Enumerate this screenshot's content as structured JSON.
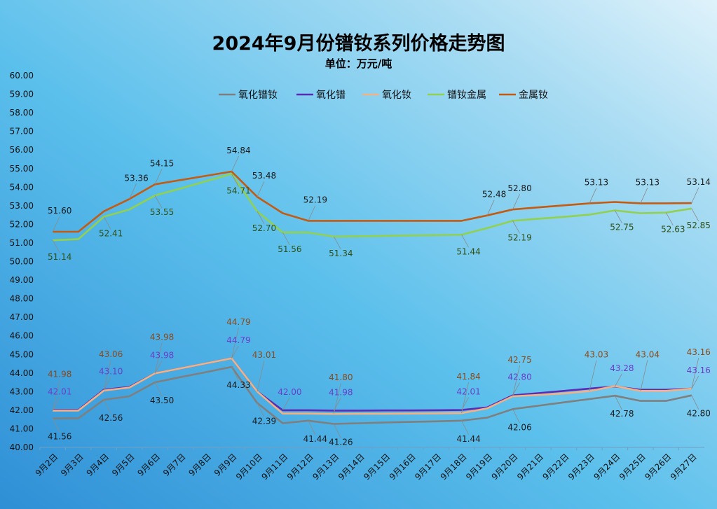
{
  "chart_data": {
    "type": "line",
    "title": "2024年9月份镨钕系列价格走势图",
    "subtitle": "单位：万元/吨",
    "ylim": [
      40,
      60
    ],
    "yticks": [
      "40.00",
      "41.00",
      "42.00",
      "43.00",
      "44.00",
      "45.00",
      "46.00",
      "47.00",
      "48.00",
      "49.00",
      "50.00",
      "51.00",
      "52.00",
      "53.00",
      "54.00",
      "55.00",
      "56.00",
      "57.00",
      "58.00",
      "59.00",
      "60.00"
    ],
    "categories": [
      "9月2日",
      "9月3日",
      "9月4日",
      "9月5日",
      "9月6日",
      "9月7日",
      "9月8日",
      "9月9日",
      "9月10日",
      "9月11日",
      "9月12日",
      "9月13日",
      "9月14日",
      "9月15日",
      "9月16日",
      "9月17日",
      "9月18日",
      "9月19日",
      "9月20日",
      "9月21日",
      "9月22日",
      "9月23日",
      "9月24日",
      "9月25日",
      "9月26日",
      "9月27日"
    ],
    "legend_position": "top",
    "grid": false,
    "series": [
      {
        "name": "氧化镨钕",
        "color": "#7f7f7f",
        "label_color": "#1a1a1a",
        "values": [
          41.56,
          41.56,
          42.56,
          42.75,
          43.5,
          43.78,
          44.05,
          44.33,
          42.39,
          41.3,
          41.44,
          41.26,
          41.3,
          41.34,
          41.37,
          41.4,
          41.44,
          41.6,
          42.06,
          42.24,
          42.42,
          42.6,
          42.78,
          42.5,
          42.5,
          42.8
        ]
      },
      {
        "name": "氧化镨",
        "color": "#5b2bb5",
        "label_color": "#6a3fc8",
        "values": [
          42.01,
          42.01,
          43.1,
          43.25,
          43.98,
          44.25,
          44.52,
          44.79,
          43.01,
          42.0,
          42.0,
          41.98,
          41.98,
          41.99,
          41.99,
          42.0,
          42.01,
          42.15,
          42.8,
          42.92,
          43.04,
          43.16,
          43.28,
          43.1,
          43.1,
          43.16
        ]
      },
      {
        "name": "氧化钕",
        "color": "#f4b183",
        "label_color": "#8b4a1b",
        "values": [
          41.98,
          41.98,
          43.06,
          43.22,
          43.98,
          44.25,
          44.52,
          44.79,
          43.01,
          41.82,
          41.82,
          41.8,
          41.81,
          41.81,
          41.82,
          41.83,
          41.84,
          42.1,
          42.75,
          42.82,
          42.9,
          43.03,
          43.3,
          43.04,
          43.04,
          43.16
        ]
      },
      {
        "name": "镨钕金属",
        "color": "#92d050",
        "label_color": "#2f4f14",
        "values": [
          51.14,
          51.2,
          52.41,
          52.8,
          53.55,
          53.93,
          54.32,
          54.71,
          52.7,
          51.56,
          51.56,
          51.34,
          51.36,
          51.38,
          51.4,
          51.42,
          51.44,
          51.8,
          52.19,
          52.3,
          52.4,
          52.52,
          52.75,
          52.6,
          52.63,
          52.85
        ]
      },
      {
        "name": "金属钕",
        "color": "#c55a11",
        "label_color": "#1a1a1a",
        "values": [
          51.6,
          51.6,
          52.7,
          53.36,
          54.15,
          54.38,
          54.61,
          54.84,
          53.48,
          52.6,
          52.19,
          52.19,
          52.19,
          52.19,
          52.19,
          52.19,
          52.19,
          52.48,
          52.8,
          52.91,
          53.02,
          53.13,
          53.2,
          53.13,
          53.13,
          53.14
        ]
      }
    ],
    "data_labels": [
      {
        "series": 4,
        "index": 0,
        "text": "51.60"
      },
      {
        "series": 4,
        "index": 3,
        "text": "53.36"
      },
      {
        "series": 4,
        "index": 4,
        "text": "54.15"
      },
      {
        "series": 4,
        "index": 7,
        "text": "54.84"
      },
      {
        "series": 4,
        "index": 8,
        "text": "53.48"
      },
      {
        "series": 4,
        "index": 10,
        "text": "52.19"
      },
      {
        "series": 4,
        "index": 17,
        "text": "52.48"
      },
      {
        "series": 4,
        "index": 18,
        "text": "52.80"
      },
      {
        "series": 4,
        "index": 21,
        "text": "53.13"
      },
      {
        "series": 4,
        "index": 23,
        "text": "53.13"
      },
      {
        "series": 4,
        "index": 25,
        "text": "53.14"
      },
      {
        "series": 3,
        "index": 0,
        "text": "51.14"
      },
      {
        "series": 3,
        "index": 2,
        "text": "52.41"
      },
      {
        "series": 3,
        "index": 4,
        "text": "53.55"
      },
      {
        "series": 3,
        "index": 7,
        "text": "54.71"
      },
      {
        "series": 3,
        "index": 8,
        "text": "52.70"
      },
      {
        "series": 3,
        "index": 9,
        "text": "51.56"
      },
      {
        "series": 3,
        "index": 11,
        "text": "51.34"
      },
      {
        "series": 3,
        "index": 16,
        "text": "51.44"
      },
      {
        "series": 3,
        "index": 18,
        "text": "52.19"
      },
      {
        "series": 3,
        "index": 22,
        "text": "52.75"
      },
      {
        "series": 3,
        "index": 24,
        "text": "52.63"
      },
      {
        "series": 3,
        "index": 25,
        "text": "52.85"
      },
      {
        "series": 2,
        "index": 0,
        "text": "41.98"
      },
      {
        "series": 2,
        "index": 2,
        "text": "43.06"
      },
      {
        "series": 2,
        "index": 4,
        "text": "43.98"
      },
      {
        "series": 2,
        "index": 7,
        "text": "44.79"
      },
      {
        "series": 2,
        "index": 8,
        "text": "43.01"
      },
      {
        "series": 2,
        "index": 11,
        "text": "41.80"
      },
      {
        "series": 2,
        "index": 16,
        "text": "41.84"
      },
      {
        "series": 2,
        "index": 18,
        "text": "42.75"
      },
      {
        "series": 2,
        "index": 21,
        "text": "43.03"
      },
      {
        "series": 2,
        "index": 23,
        "text": "43.04"
      },
      {
        "series": 2,
        "index": 25,
        "text": "43.16"
      },
      {
        "series": 1,
        "index": 0,
        "text": "42.01"
      },
      {
        "series": 1,
        "index": 2,
        "text": "43.10"
      },
      {
        "series": 1,
        "index": 4,
        "text": "43.98"
      },
      {
        "series": 1,
        "index": 7,
        "text": "44.79"
      },
      {
        "series": 1,
        "index": 9,
        "text": "42.00"
      },
      {
        "series": 1,
        "index": 11,
        "text": "41.98"
      },
      {
        "series": 1,
        "index": 16,
        "text": "42.01"
      },
      {
        "series": 1,
        "index": 18,
        "text": "42.80"
      },
      {
        "series": 1,
        "index": 22,
        "text": "43.28"
      },
      {
        "series": 1,
        "index": 25,
        "text": "43.16"
      },
      {
        "series": 0,
        "index": 0,
        "text": "41.56"
      },
      {
        "series": 0,
        "index": 2,
        "text": "42.56"
      },
      {
        "series": 0,
        "index": 4,
        "text": "43.50"
      },
      {
        "series": 0,
        "index": 7,
        "text": "44.33"
      },
      {
        "series": 0,
        "index": 8,
        "text": "42.39"
      },
      {
        "series": 0,
        "index": 10,
        "text": "41.44"
      },
      {
        "series": 0,
        "index": 11,
        "text": "41.26"
      },
      {
        "series": 0,
        "index": 16,
        "text": "41.44"
      },
      {
        "series": 0,
        "index": 18,
        "text": "42.06"
      },
      {
        "series": 0,
        "index": 22,
        "text": "42.78"
      },
      {
        "series": 0,
        "index": 25,
        "text": "42.80"
      }
    ]
  }
}
